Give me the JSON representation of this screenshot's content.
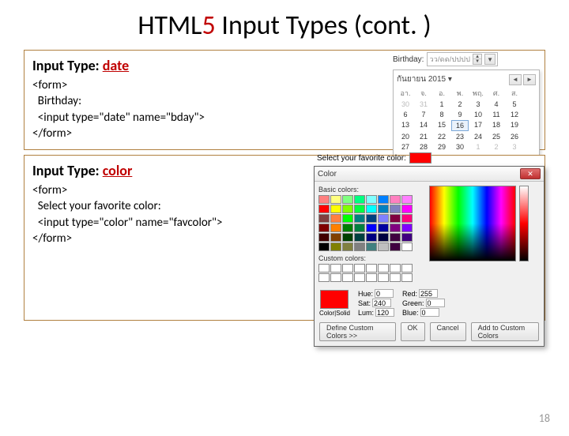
{
  "title_prefix": "HTML",
  "title_accent": "5",
  "title_suffix": " Input Types (cont. )",
  "page_number": "18",
  "date_section": {
    "heading_prefix": "Input Type: ",
    "heading_keyword": "date",
    "code": "<form>\n  Birthday:\n  <input type=\"date\" name=\"bday\">\n</form>",
    "widget": {
      "label": "Birthday:",
      "placeholder": "วว/ดด/ปปปป",
      "month_label": "กันยายน 2015 ▾",
      "day_headers": [
        "อา.",
        "จ.",
        "อ.",
        "พ.",
        "พฤ.",
        "ศ.",
        "ส."
      ],
      "weeks": [
        [
          {
            "n": "30",
            "other": true
          },
          {
            "n": "31",
            "other": true
          },
          {
            "n": "1"
          },
          {
            "n": "2"
          },
          {
            "n": "3"
          },
          {
            "n": "4"
          },
          {
            "n": "5"
          }
        ],
        [
          {
            "n": "6"
          },
          {
            "n": "7"
          },
          {
            "n": "8"
          },
          {
            "n": "9"
          },
          {
            "n": "10"
          },
          {
            "n": "11"
          },
          {
            "n": "12"
          }
        ],
        [
          {
            "n": "13"
          },
          {
            "n": "14"
          },
          {
            "n": "15"
          },
          {
            "n": "16",
            "sel": true
          },
          {
            "n": "17"
          },
          {
            "n": "18"
          },
          {
            "n": "19"
          }
        ],
        [
          {
            "n": "20"
          },
          {
            "n": "21"
          },
          {
            "n": "22"
          },
          {
            "n": "23"
          },
          {
            "n": "24"
          },
          {
            "n": "25"
          },
          {
            "n": "26"
          }
        ],
        [
          {
            "n": "27"
          },
          {
            "n": "28"
          },
          {
            "n": "29"
          },
          {
            "n": "30"
          },
          {
            "n": "1",
            "other": true
          },
          {
            "n": "2",
            "other": true
          },
          {
            "n": "3",
            "other": true
          }
        ]
      ]
    }
  },
  "color_section": {
    "heading_prefix": "Input Type: ",
    "heading_keyword": "color",
    "code": "<form>\n  Select your favorite color:\n  <input type=\"color\" name=\"favcolor\">\n</form>",
    "widget": {
      "label": "Select your favorite color:",
      "dialog_title": "Color",
      "basic_label": "Basic colors:",
      "custom_label": "Custom colors:",
      "define_btn": "Define Custom Colors >>",
      "ok_btn": "OK",
      "cancel_btn": "Cancel",
      "add_btn": "Add to Custom Colors",
      "basic_colors": [
        "#ff8080",
        "#ffff80",
        "#80ff80",
        "#00ff80",
        "#80ffff",
        "#0080ff",
        "#ff80c0",
        "#ff80ff",
        "#ff0000",
        "#ffff00",
        "#80ff00",
        "#00ff40",
        "#00ffff",
        "#0080c0",
        "#8080c0",
        "#ff00ff",
        "#804040",
        "#ff8040",
        "#00ff00",
        "#008080",
        "#004080",
        "#8080ff",
        "#800040",
        "#ff0080",
        "#800000",
        "#ff8000",
        "#008000",
        "#008040",
        "#0000ff",
        "#0000a0",
        "#800080",
        "#8000ff",
        "#400000",
        "#804000",
        "#004000",
        "#004040",
        "#000080",
        "#000040",
        "#400040",
        "#400080",
        "#000000",
        "#808000",
        "#808040",
        "#808080",
        "#408080",
        "#c0c0c0",
        "#400040",
        "#ffffff"
      ],
      "values": {
        "hue_label": "Hue:",
        "hue": "0",
        "sat_label": "Sat:",
        "sat": "240",
        "lum_label": "Lum:",
        "lum": "120",
        "red_label": "Red:",
        "red": "255",
        "green_label": "Green:",
        "green": "0",
        "blue_label": "Blue:",
        "blue": "0",
        "solid_label": "Color|Solid"
      }
    }
  }
}
